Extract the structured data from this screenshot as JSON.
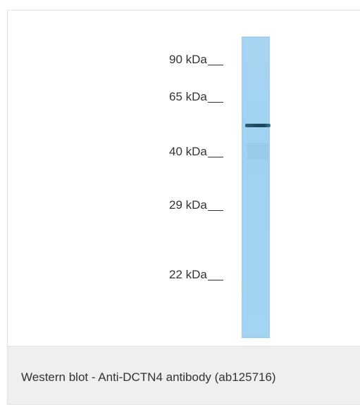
{
  "figure": {
    "markers": [
      {
        "label": "90 kDa"
      },
      {
        "label": "65 kDa"
      },
      {
        "label": "40 kDa"
      },
      {
        "label": "29 kDa"
      },
      {
        "label": "22 kDa"
      }
    ]
  },
  "caption": {
    "text": "Western blot - Anti-DCTN4 antibody (ab125716)"
  },
  "colors": {
    "lane": "#a3d4f2",
    "band": "#1d4a60",
    "caption_background": "#eeefef"
  }
}
